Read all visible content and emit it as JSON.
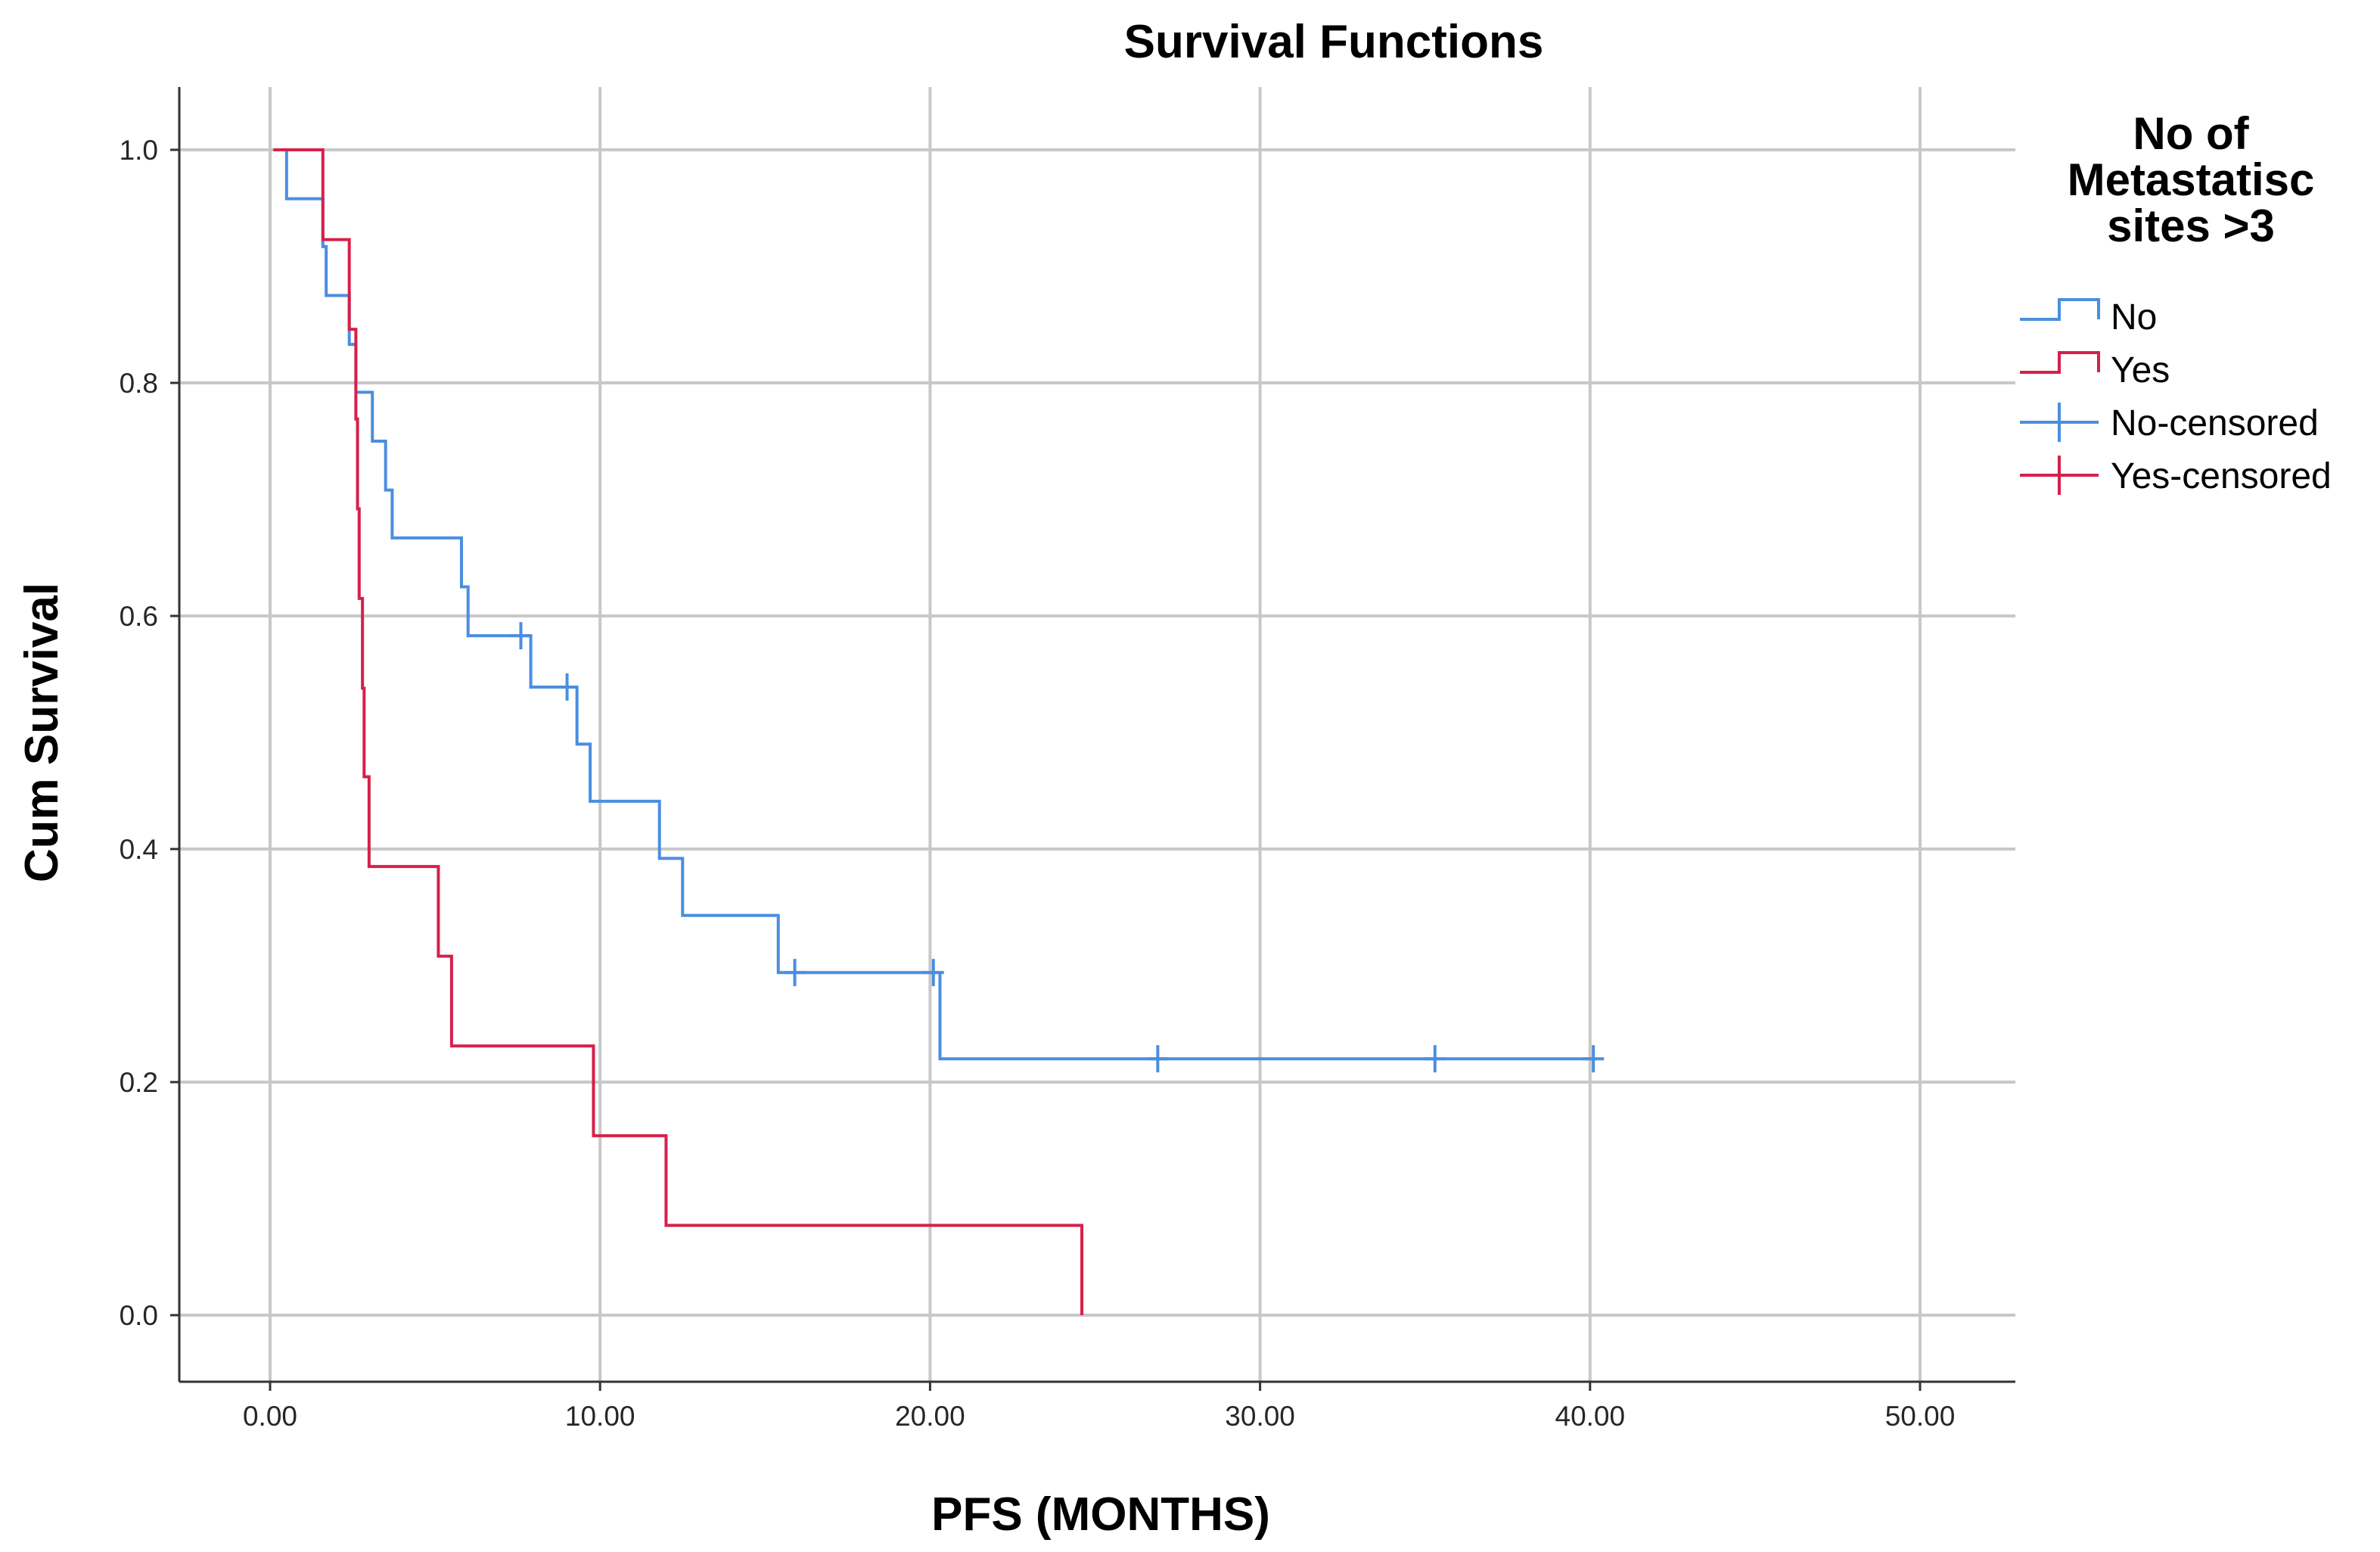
{
  "chart_data": {
    "type": "line",
    "subtype": "kaplan-meier-step",
    "title": "Survival Functions",
    "xlabel": "PFS (MONTHS)",
    "ylabel": "Cum Survival",
    "xlim": [
      0,
      50
    ],
    "ylim": [
      0,
      1
    ],
    "x_ticks": [
      "0.00",
      "10.00",
      "20.00",
      "30.00",
      "40.00",
      "50.00"
    ],
    "x_tick_values": [
      0,
      10,
      20,
      30,
      40,
      50
    ],
    "y_ticks": [
      "0.0",
      "0.2",
      "0.4",
      "0.6",
      "0.8",
      "1.0"
    ],
    "y_tick_values": [
      0,
      0.2,
      0.4,
      0.6,
      0.8,
      1.0
    ],
    "grid": true,
    "legend": {
      "title_lines": [
        "No of",
        "Metastatisc",
        "sites >3"
      ],
      "placement": "right",
      "entries": [
        {
          "label": "No",
          "kind": "line",
          "series": "No"
        },
        {
          "label": "Yes",
          "kind": "line",
          "series": "Yes"
        },
        {
          "label": "No-censored",
          "kind": "censor",
          "series": "No"
        },
        {
          "label": "Yes-censored",
          "kind": "censor",
          "series": "Yes"
        }
      ]
    },
    "series": [
      {
        "name": "No",
        "color": "#4a8ee0",
        "steps": [
          [
            0.1,
            1.0
          ],
          [
            0.5,
            0.958
          ],
          [
            1.6,
            0.917
          ],
          [
            1.7,
            0.875
          ],
          [
            2.4,
            0.833
          ],
          [
            2.6,
            0.792
          ],
          [
            3.1,
            0.75
          ],
          [
            3.5,
            0.708
          ],
          [
            3.7,
            0.667
          ],
          [
            5.8,
            0.625
          ],
          [
            6.0,
            0.583
          ],
          [
            7.9,
            0.539
          ],
          [
            9.3,
            0.49
          ],
          [
            9.7,
            0.441
          ],
          [
            11.8,
            0.392
          ],
          [
            12.5,
            0.343
          ],
          [
            15.4,
            0.294
          ],
          [
            20.3,
            0.22
          ],
          [
            40.2,
            0.22
          ]
        ],
        "censored": [
          [
            7.6,
            0.583
          ],
          [
            9.0,
            0.539
          ],
          [
            15.9,
            0.294
          ],
          [
            20.1,
            0.294
          ],
          [
            26.9,
            0.22
          ],
          [
            35.3,
            0.22
          ],
          [
            40.1,
            0.22
          ]
        ]
      },
      {
        "name": "Yes",
        "color": "#d6204a",
        "steps": [
          [
            0.1,
            1.0
          ],
          [
            1.6,
            0.923
          ],
          [
            2.4,
            0.846
          ],
          [
            2.6,
            0.769
          ],
          [
            2.65,
            0.692
          ],
          [
            2.7,
            0.615
          ],
          [
            2.8,
            0.538
          ],
          [
            2.85,
            0.462
          ],
          [
            3.0,
            0.385
          ],
          [
            5.1,
            0.308
          ],
          [
            5.5,
            0.231
          ],
          [
            9.8,
            0.154
          ],
          [
            12.0,
            0.077
          ],
          [
            24.6,
            0.0
          ]
        ],
        "censored": []
      }
    ]
  }
}
